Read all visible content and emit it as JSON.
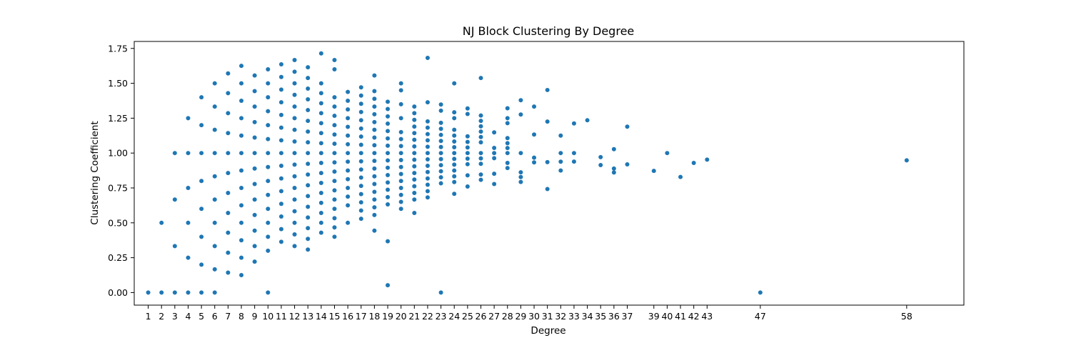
{
  "chart_data": {
    "type": "scatter",
    "title": "NJ Block Clustering By Degree",
    "xlabel": "Degree",
    "ylabel": "Clustering Coefficient",
    "ylim": [
      -0.09,
      1.8
    ],
    "xlim": [
      -0.05,
      62.3
    ],
    "x_ticks": [
      1,
      2,
      3,
      4,
      5,
      6,
      7,
      8,
      9,
      10,
      11,
      12,
      13,
      14,
      15,
      16,
      17,
      18,
      19,
      20,
      21,
      22,
      23,
      24,
      25,
      26,
      27,
      28,
      29,
      30,
      31,
      32,
      33,
      34,
      35,
      36,
      37,
      39,
      40,
      41,
      42,
      43,
      47,
      58
    ],
    "y_ticks": [
      0.0,
      0.25,
      0.5,
      0.75,
      1.0,
      1.25,
      1.5,
      1.75
    ],
    "y_tick_labels": [
      "0.00",
      "0.25",
      "0.50",
      "0.75",
      "1.00",
      "1.25",
      "1.50",
      "1.75"
    ],
    "grid": false,
    "marker_color": "#1f77b4",
    "points": [
      [
        1,
        0
      ],
      [
        2,
        0
      ],
      [
        2,
        0.5
      ],
      [
        3,
        0
      ],
      [
        3,
        0.333
      ],
      [
        3,
        0.667
      ],
      [
        3,
        1
      ],
      [
        4,
        0
      ],
      [
        4,
        0.25
      ],
      [
        4,
        0.5
      ],
      [
        4,
        0.75
      ],
      [
        4,
        1
      ],
      [
        4,
        1.25
      ],
      [
        5,
        0
      ],
      [
        5,
        0.2
      ],
      [
        5,
        0.4
      ],
      [
        5,
        0.6
      ],
      [
        5,
        0.8
      ],
      [
        5,
        1
      ],
      [
        5,
        1.2
      ],
      [
        5,
        1.4
      ],
      [
        6,
        0
      ],
      [
        6,
        0.167
      ],
      [
        6,
        0.333
      ],
      [
        6,
        0.5
      ],
      [
        6,
        0.667
      ],
      [
        6,
        0.833
      ],
      [
        6,
        1
      ],
      [
        6,
        1.167
      ],
      [
        6,
        1.333
      ],
      [
        6,
        1.5
      ],
      [
        7,
        0.143
      ],
      [
        7,
        0.286
      ],
      [
        7,
        0.429
      ],
      [
        7,
        0.571
      ],
      [
        7,
        0.714
      ],
      [
        7,
        0.857
      ],
      [
        7,
        1
      ],
      [
        7,
        1.143
      ],
      [
        7,
        1.286
      ],
      [
        7,
        1.429
      ],
      [
        7,
        1.571
      ],
      [
        8,
        0.125
      ],
      [
        8,
        0.25
      ],
      [
        8,
        0.375
      ],
      [
        8,
        0.5
      ],
      [
        8,
        0.625
      ],
      [
        8,
        0.75
      ],
      [
        8,
        0.875
      ],
      [
        8,
        1
      ],
      [
        8,
        1.125
      ],
      [
        8,
        1.25
      ],
      [
        8,
        1.375
      ],
      [
        8,
        1.5
      ],
      [
        8,
        1.625
      ],
      [
        9,
        0.222
      ],
      [
        9,
        0.333
      ],
      [
        9,
        0.444
      ],
      [
        9,
        0.556
      ],
      [
        9,
        0.667
      ],
      [
        9,
        0.778
      ],
      [
        9,
        0.889
      ],
      [
        9,
        1
      ],
      [
        9,
        1.111
      ],
      [
        9,
        1.222
      ],
      [
        9,
        1.333
      ],
      [
        9,
        1.444
      ],
      [
        9,
        1.556
      ],
      [
        10,
        0
      ],
      [
        10,
        0.3
      ],
      [
        10,
        0.4
      ],
      [
        10,
        0.5
      ],
      [
        10,
        0.6
      ],
      [
        10,
        0.7
      ],
      [
        10,
        0.8
      ],
      [
        10,
        0.9
      ],
      [
        10,
        1
      ],
      [
        10,
        1.1
      ],
      [
        10,
        1.2
      ],
      [
        10,
        1.3
      ],
      [
        10,
        1.4
      ],
      [
        10,
        1.5
      ],
      [
        10,
        1.6
      ],
      [
        11,
        0.364
      ],
      [
        11,
        0.455
      ],
      [
        11,
        0.545
      ],
      [
        11,
        0.636
      ],
      [
        11,
        0.727
      ],
      [
        11,
        0.818
      ],
      [
        11,
        0.909
      ],
      [
        11,
        1
      ],
      [
        11,
        1.091
      ],
      [
        11,
        1.182
      ],
      [
        11,
        1.273
      ],
      [
        11,
        1.364
      ],
      [
        11,
        1.455
      ],
      [
        11,
        1.545
      ],
      [
        11,
        1.636
      ],
      [
        12,
        0.333
      ],
      [
        12,
        0.417
      ],
      [
        12,
        0.5
      ],
      [
        12,
        0.583
      ],
      [
        12,
        0.667
      ],
      [
        12,
        0.75
      ],
      [
        12,
        0.833
      ],
      [
        12,
        0.917
      ],
      [
        12,
        1
      ],
      [
        12,
        1.083
      ],
      [
        12,
        1.167
      ],
      [
        12,
        1.25
      ],
      [
        12,
        1.333
      ],
      [
        12,
        1.417
      ],
      [
        12,
        1.5
      ],
      [
        12,
        1.583
      ],
      [
        12,
        1.667
      ],
      [
        13,
        0.308
      ],
      [
        13,
        0.385
      ],
      [
        13,
        0.462
      ],
      [
        13,
        0.538
      ],
      [
        13,
        0.615
      ],
      [
        13,
        0.692
      ],
      [
        13,
        0.769
      ],
      [
        13,
        0.846
      ],
      [
        13,
        0.923
      ],
      [
        13,
        1
      ],
      [
        13,
        1.077
      ],
      [
        13,
        1.154
      ],
      [
        13,
        1.231
      ],
      [
        13,
        1.308
      ],
      [
        13,
        1.385
      ],
      [
        13,
        1.462
      ],
      [
        13,
        1.538
      ],
      [
        13,
        1.615
      ],
      [
        14,
        0.429
      ],
      [
        14,
        0.5
      ],
      [
        14,
        0.571
      ],
      [
        14,
        0.643
      ],
      [
        14,
        0.714
      ],
      [
        14,
        0.786
      ],
      [
        14,
        0.857
      ],
      [
        14,
        0.929
      ],
      [
        14,
        1
      ],
      [
        14,
        1.071
      ],
      [
        14,
        1.143
      ],
      [
        14,
        1.214
      ],
      [
        14,
        1.286
      ],
      [
        14,
        1.357
      ],
      [
        14,
        1.429
      ],
      [
        14,
        1.5
      ],
      [
        14,
        1.714
      ],
      [
        15,
        0.4
      ],
      [
        15,
        0.467
      ],
      [
        15,
        0.533
      ],
      [
        15,
        0.6
      ],
      [
        15,
        0.667
      ],
      [
        15,
        0.733
      ],
      [
        15,
        0.8
      ],
      [
        15,
        0.867
      ],
      [
        15,
        0.933
      ],
      [
        15,
        1
      ],
      [
        15,
        1.067
      ],
      [
        15,
        1.133
      ],
      [
        15,
        1.2
      ],
      [
        15,
        1.267
      ],
      [
        15,
        1.333
      ],
      [
        15,
        1.4
      ],
      [
        15,
        1.6
      ],
      [
        15,
        1.667
      ],
      [
        16,
        0.5
      ],
      [
        16,
        0.625
      ],
      [
        16,
        0.688
      ],
      [
        16,
        0.75
      ],
      [
        16,
        0.813
      ],
      [
        16,
        0.875
      ],
      [
        16,
        0.938
      ],
      [
        16,
        1
      ],
      [
        16,
        1.063
      ],
      [
        16,
        1.125
      ],
      [
        16,
        1.188
      ],
      [
        16,
        1.25
      ],
      [
        16,
        1.313
      ],
      [
        16,
        1.375
      ],
      [
        16,
        1.438
      ],
      [
        17,
        0.529
      ],
      [
        17,
        0.588
      ],
      [
        17,
        0.647
      ],
      [
        17,
        0.706
      ],
      [
        17,
        0.765
      ],
      [
        17,
        0.824
      ],
      [
        17,
        0.882
      ],
      [
        17,
        0.941
      ],
      [
        17,
        1
      ],
      [
        17,
        1.059
      ],
      [
        17,
        1.118
      ],
      [
        17,
        1.176
      ],
      [
        17,
        1.235
      ],
      [
        17,
        1.294
      ],
      [
        17,
        1.353
      ],
      [
        17,
        1.412
      ],
      [
        17,
        1.471
      ],
      [
        18,
        0.444
      ],
      [
        18,
        0.556
      ],
      [
        18,
        0.611
      ],
      [
        18,
        0.667
      ],
      [
        18,
        0.722
      ],
      [
        18,
        0.778
      ],
      [
        18,
        0.833
      ],
      [
        18,
        0.889
      ],
      [
        18,
        0.944
      ],
      [
        18,
        1
      ],
      [
        18,
        1.056
      ],
      [
        18,
        1.111
      ],
      [
        18,
        1.167
      ],
      [
        18,
        1.222
      ],
      [
        18,
        1.278
      ],
      [
        18,
        1.333
      ],
      [
        18,
        1.389
      ],
      [
        18,
        1.444
      ],
      [
        18,
        1.556
      ],
      [
        19,
        0.053
      ],
      [
        19,
        0.368
      ],
      [
        19,
        0.632
      ],
      [
        19,
        0.684
      ],
      [
        19,
        0.737
      ],
      [
        19,
        0.789
      ],
      [
        19,
        0.842
      ],
      [
        19,
        0.895
      ],
      [
        19,
        0.947
      ],
      [
        19,
        1
      ],
      [
        19,
        1.053
      ],
      [
        19,
        1.105
      ],
      [
        19,
        1.158
      ],
      [
        19,
        1.211
      ],
      [
        19,
        1.263
      ],
      [
        19,
        1.316
      ],
      [
        19,
        1.368
      ],
      [
        20,
        0.6
      ],
      [
        20,
        0.65
      ],
      [
        20,
        0.7
      ],
      [
        20,
        0.75
      ],
      [
        20,
        0.8
      ],
      [
        20,
        0.85
      ],
      [
        20,
        0.9
      ],
      [
        20,
        0.95
      ],
      [
        20,
        1
      ],
      [
        20,
        1.05
      ],
      [
        20,
        1.1
      ],
      [
        20,
        1.15
      ],
      [
        20,
        1.25
      ],
      [
        20,
        1.35
      ],
      [
        20,
        1.45
      ],
      [
        20,
        1.5
      ],
      [
        21,
        0.571
      ],
      [
        21,
        0.667
      ],
      [
        21,
        0.714
      ],
      [
        21,
        0.762
      ],
      [
        21,
        0.81
      ],
      [
        21,
        0.857
      ],
      [
        21,
        0.905
      ],
      [
        21,
        0.952
      ],
      [
        21,
        1
      ],
      [
        21,
        1.048
      ],
      [
        21,
        1.095
      ],
      [
        21,
        1.143
      ],
      [
        21,
        1.19
      ],
      [
        21,
        1.238
      ],
      [
        21,
        1.286
      ],
      [
        21,
        1.333
      ],
      [
        22,
        0.682
      ],
      [
        22,
        0.727
      ],
      [
        22,
        0.773
      ],
      [
        22,
        0.818
      ],
      [
        22,
        0.864
      ],
      [
        22,
        0.909
      ],
      [
        22,
        0.955
      ],
      [
        22,
        1
      ],
      [
        22,
        1.045
      ],
      [
        22,
        1.091
      ],
      [
        22,
        1.136
      ],
      [
        22,
        1.182
      ],
      [
        22,
        1.227
      ],
      [
        22,
        1.364
      ],
      [
        22,
        1.682
      ],
      [
        23,
        0
      ],
      [
        23,
        0.783
      ],
      [
        23,
        0.826
      ],
      [
        23,
        0.87
      ],
      [
        23,
        0.913
      ],
      [
        23,
        0.957
      ],
      [
        23,
        1
      ],
      [
        23,
        1.043
      ],
      [
        23,
        1.087
      ],
      [
        23,
        1.13
      ],
      [
        23,
        1.174
      ],
      [
        23,
        1.217
      ],
      [
        23,
        1.304
      ],
      [
        23,
        1.348
      ],
      [
        24,
        0.708
      ],
      [
        24,
        0.792
      ],
      [
        24,
        0.833
      ],
      [
        24,
        0.875
      ],
      [
        24,
        0.917
      ],
      [
        24,
        0.958
      ],
      [
        24,
        1
      ],
      [
        24,
        1.042
      ],
      [
        24,
        1.083
      ],
      [
        24,
        1.125
      ],
      [
        24,
        1.167
      ],
      [
        24,
        1.25
      ],
      [
        24,
        1.292
      ],
      [
        24,
        1.5
      ],
      [
        25,
        0.76
      ],
      [
        25,
        0.84
      ],
      [
        25,
        0.92
      ],
      [
        25,
        0.96
      ],
      [
        25,
        1
      ],
      [
        25,
        1.04
      ],
      [
        25,
        1.08
      ],
      [
        25,
        1.12
      ],
      [
        25,
        1.28
      ],
      [
        25,
        1.32
      ],
      [
        26,
        0.808
      ],
      [
        26,
        0.846
      ],
      [
        26,
        0.923
      ],
      [
        26,
        0.962
      ],
      [
        26,
        1
      ],
      [
        26,
        1.077
      ],
      [
        26,
        1.115
      ],
      [
        26,
        1.154
      ],
      [
        26,
        1.192
      ],
      [
        26,
        1.231
      ],
      [
        26,
        1.269
      ],
      [
        26,
        1.538
      ],
      [
        27,
        0.778
      ],
      [
        27,
        0.852
      ],
      [
        27,
        0.963
      ],
      [
        27,
        1
      ],
      [
        27,
        1.037
      ],
      [
        27,
        1.148
      ],
      [
        28,
        0.893
      ],
      [
        28,
        0.929
      ],
      [
        28,
        1
      ],
      [
        28,
        1.036
      ],
      [
        28,
        1.071
      ],
      [
        28,
        1.107
      ],
      [
        28,
        1.214
      ],
      [
        28,
        1.25
      ],
      [
        28,
        1.321
      ],
      [
        29,
        0.793
      ],
      [
        29,
        0.828
      ],
      [
        29,
        0.862
      ],
      [
        29,
        1
      ],
      [
        29,
        1.276
      ],
      [
        29,
        1.379
      ],
      [
        30,
        0.933
      ],
      [
        30,
        0.967
      ],
      [
        30,
        1.133
      ],
      [
        30,
        1.333
      ],
      [
        31,
        0.742
      ],
      [
        31,
        0.935
      ],
      [
        31,
        1.226
      ],
      [
        31,
        1.452
      ],
      [
        32,
        0.875
      ],
      [
        32,
        0.938
      ],
      [
        32,
        1
      ],
      [
        32,
        1.125
      ],
      [
        33,
        0.939
      ],
      [
        33,
        1
      ],
      [
        33,
        1.212
      ],
      [
        34,
        1.235
      ],
      [
        35,
        0.914
      ],
      [
        35,
        0.971
      ],
      [
        36,
        0.861
      ],
      [
        36,
        0.889
      ],
      [
        36,
        1.028
      ],
      [
        37,
        0.919
      ],
      [
        37,
        1.189
      ],
      [
        39,
        0.872
      ],
      [
        40,
        1
      ],
      [
        41,
        0.829
      ],
      [
        42,
        0.929
      ],
      [
        43,
        0.953
      ],
      [
        47,
        0
      ],
      [
        58,
        0.948
      ]
    ]
  }
}
